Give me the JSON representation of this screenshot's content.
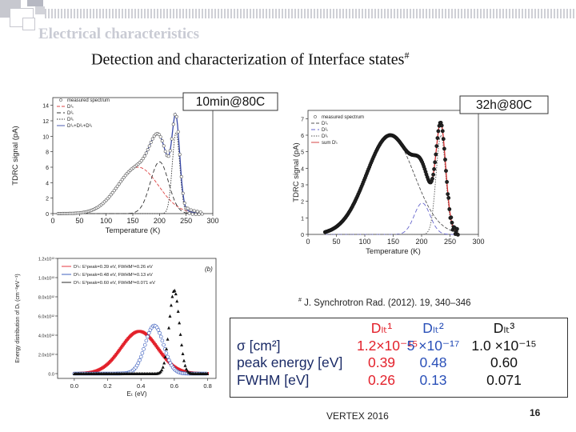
{
  "slide": {
    "title": "Electrical characteristics",
    "subtitle": "Detection and characterization of Interface states",
    "subtitle_mark": "#",
    "footer": "VERTEX 2016",
    "page_number": "16"
  },
  "reference": {
    "mark": "#",
    "text": "J. Synchrotron Rad. (2012). 19, 340–346"
  },
  "chart_data": [
    {
      "type": "line",
      "title": "10min@80C",
      "xlabel": "Temperature (K)",
      "ylabel": "TDRC signal (pA)",
      "xlim": [
        0,
        300
      ],
      "ylim": [
        0,
        15
      ],
      "xticks": [
        0,
        50,
        100,
        150,
        200,
        250,
        300
      ],
      "yticks": [
        0,
        2,
        4,
        6,
        8,
        10,
        12,
        14
      ],
      "legend": [
        "measured spectrum",
        "D¹ₜ",
        "D²ₜ",
        "D³ₜ",
        "D¹ₜ+D²ₜ+D³ₜ"
      ],
      "series": [
        {
          "name": "D1",
          "center": 160,
          "sigma": 38,
          "peak": 6.0
        },
        {
          "name": "D2",
          "center": 200,
          "sigma": 17,
          "peak": 6.7
        },
        {
          "name": "D3",
          "center": 231,
          "sigma": 7,
          "peak": 10.5
        }
      ]
    },
    {
      "type": "line",
      "title": "32h@80C",
      "xlabel": "Temperature (K)",
      "ylabel": "TDRC signal (pA)",
      "xlim": [
        0,
        300
      ],
      "ylim": [
        0,
        7.5
      ],
      "xticks": [
        0,
        50,
        100,
        150,
        200,
        250,
        300
      ],
      "yticks": [
        0,
        1,
        2,
        3,
        4,
        5,
        6,
        7
      ],
      "legend": [
        "measured spectrum",
        "D¹ₜ",
        "D²ₜ",
        "D³ₜ",
        "sum Dⁱₜ"
      ],
      "series": [
        {
          "name": "D1",
          "center": 145,
          "sigma": 42,
          "peak": 6.0
        },
        {
          "name": "D2",
          "center": 201,
          "sigma": 14,
          "peak": 1.9
        },
        {
          "name": "D3",
          "center": 234,
          "sigma": 8.5,
          "peak": 6.0
        }
      ]
    },
    {
      "type": "line",
      "panel": "(b)",
      "xlabel": "Eₜ (eV)",
      "ylabel": "Energy distribution of Dₜ (cm⁻²eV⁻¹)",
      "xlim": [
        -0.1,
        0.85
      ],
      "ylim": [
        -0.05,
        1.2
      ],
      "xticks": [
        "0.0",
        "0.2",
        "0.4",
        "0.6",
        "0.8"
      ],
      "yticks": [
        "0.0",
        "2.0x10¹²",
        "4.0x10¹²",
        "6.0x10¹²",
        "8.0x10¹²",
        "1.0x10¹³",
        "1.2x10¹³"
      ],
      "legend": [
        "D¹ₜ: E¹peak=0.39 eV, FWHM¹=0.26 eV",
        "D²ₜ: E²peak=0.48 eV, FWHM²=0.13 eV",
        "D³ₜ: E³peak=0.60 eV, FWHM³=0.071 eV"
      ],
      "series": [
        {
          "name": "D1",
          "peak_energy": 0.39,
          "fwhm": 0.26,
          "amplitude": 0.44
        },
        {
          "name": "D2",
          "peak_energy": 0.48,
          "fwhm": 0.13,
          "amplitude": 0.5
        },
        {
          "name": "D3",
          "peak_energy": 0.6,
          "fwhm": 0.071,
          "amplitude": 0.87
        }
      ]
    }
  ],
  "table": {
    "headers": [
      "",
      "Dₗₜ¹",
      "Dₗₜ²",
      "Dₗₜ³"
    ],
    "rows": [
      {
        "label": "σ [cm²]",
        "values": [
          "1.2×10⁻¹⁵",
          "5 ×10⁻¹⁷",
          "1.0 ×10⁻¹⁵"
        ]
      },
      {
        "label": "peak energy [eV]",
        "values": [
          "0.39",
          "0.48",
          "0.60"
        ]
      },
      {
        "label": "FWHM [eV]",
        "values": [
          "0.26",
          "0.13",
          "0.071"
        ]
      }
    ]
  },
  "colors": {
    "red": "#e3212b",
    "blue": "#2a50b8",
    "black": "#111111",
    "navy": "#1a2a66",
    "deco_gray": "#b0b0b8"
  }
}
